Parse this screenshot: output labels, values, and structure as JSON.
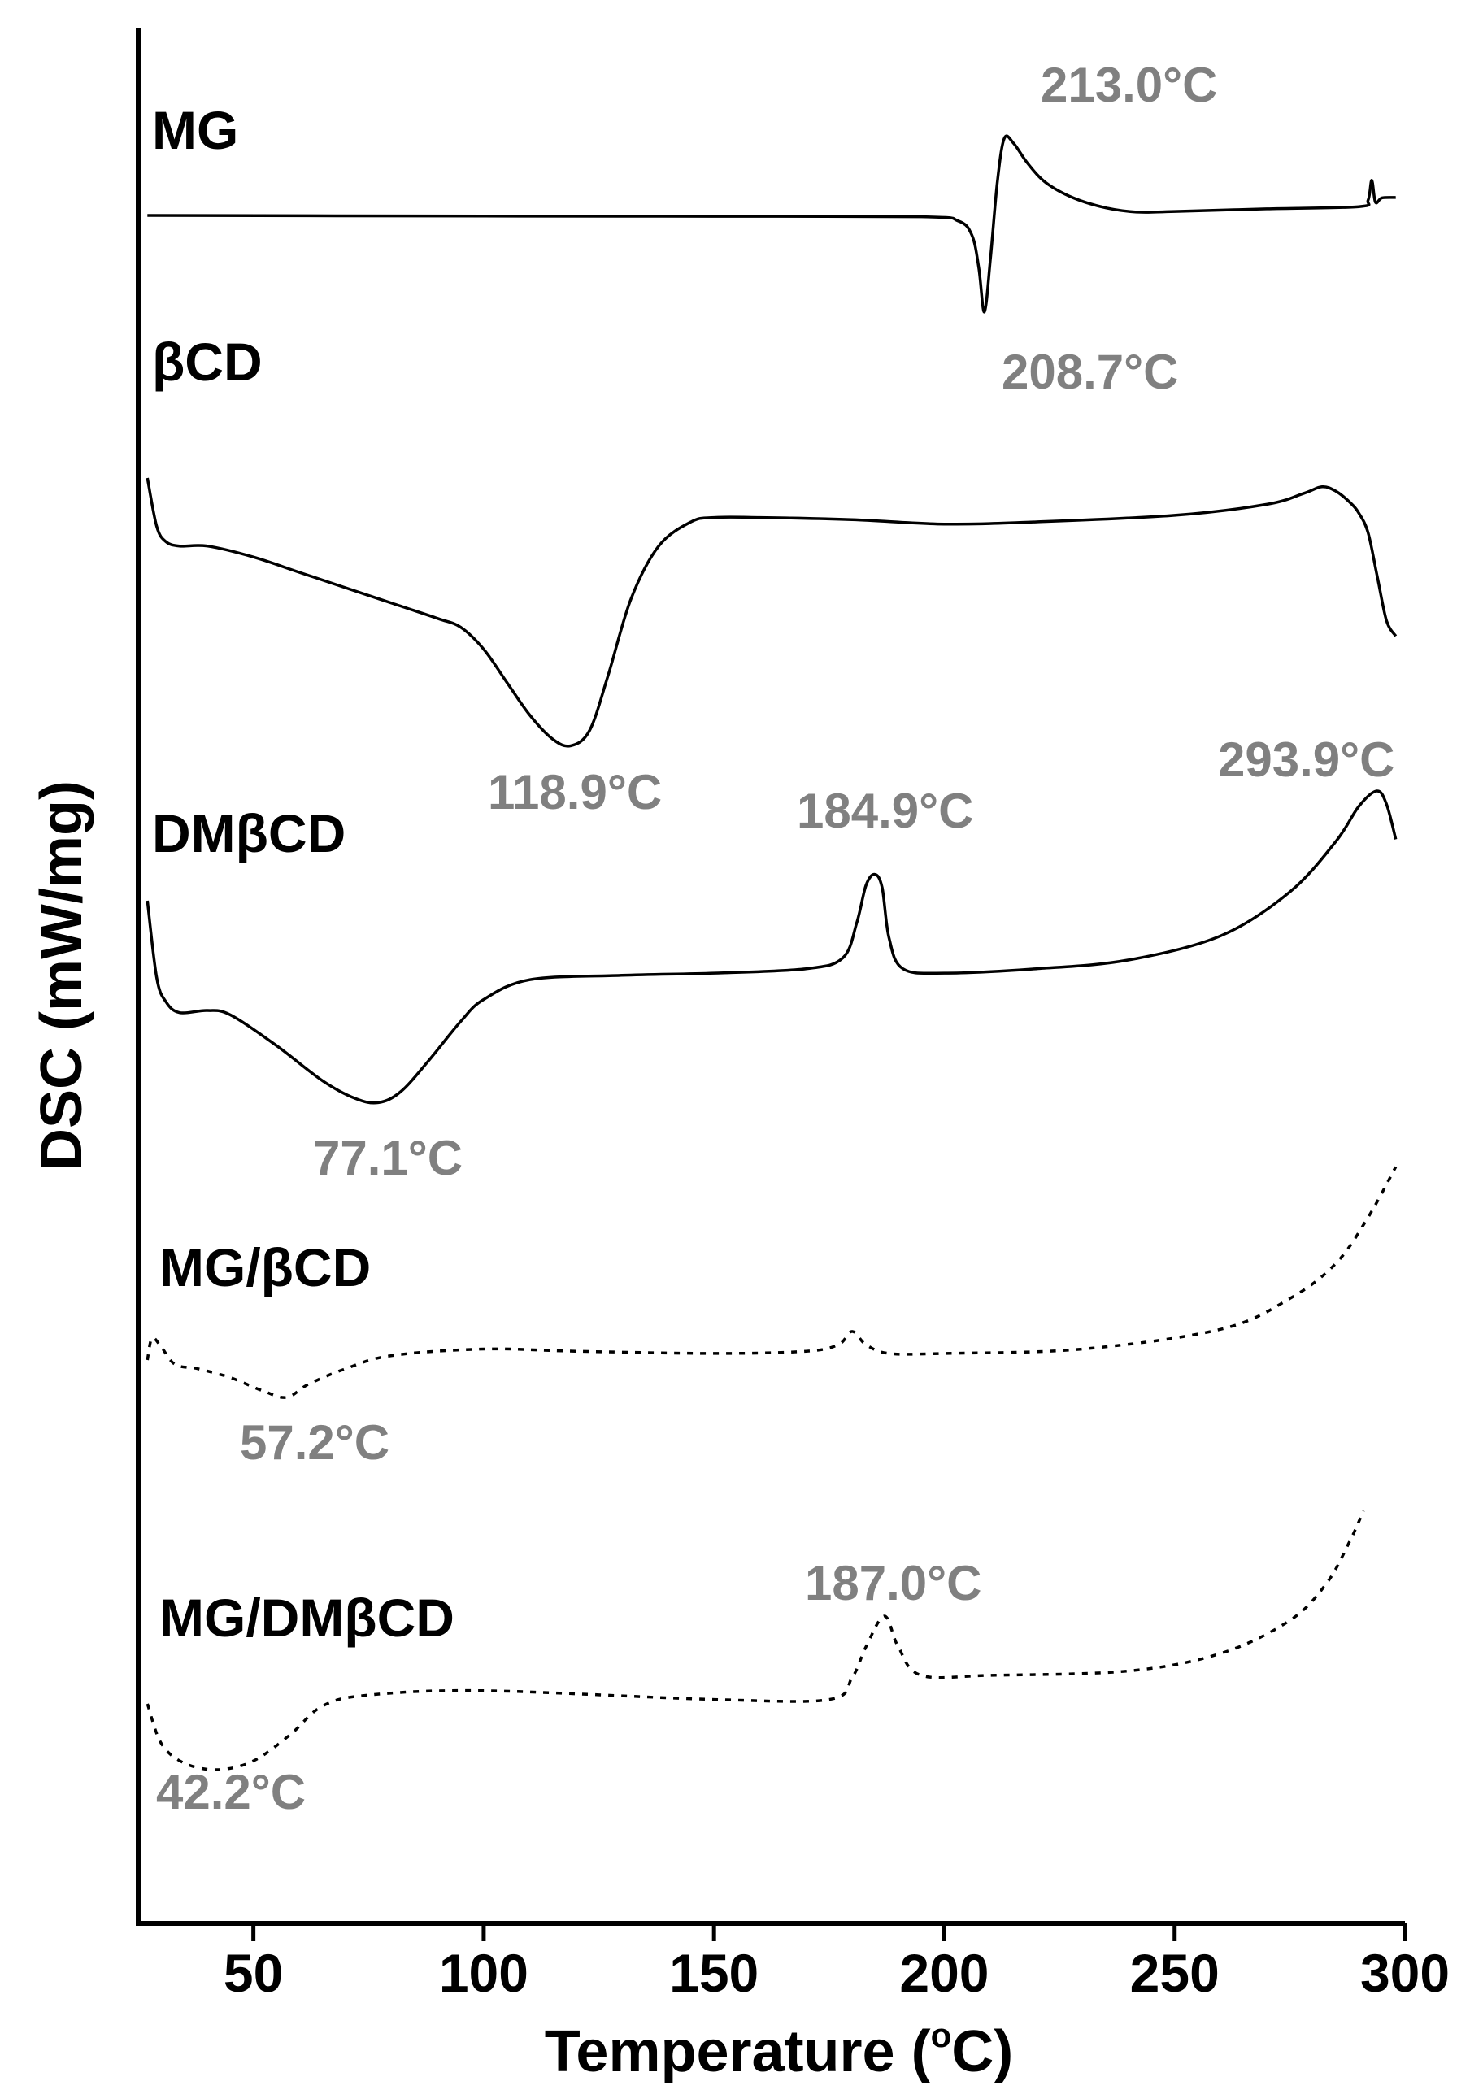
{
  "chart_data": {
    "type": "line",
    "title": "",
    "xlabel": "Temperature (°C)",
    "xlabel_main": "Temperature (",
    "xlabel_degree": "o",
    "xlabel_unit": "C)",
    "ylabel": "DSC (mW/mg)",
    "xlim": [
      25,
      300
    ],
    "xticks": [
      "50",
      "100",
      "150",
      "200",
      "250",
      "300"
    ],
    "xtick_values": [
      50,
      100,
      150,
      200,
      250,
      300
    ],
    "grid": false,
    "legend": "none",
    "series": [
      {
        "name": "MG",
        "style": "solid",
        "x": [
          27,
          100,
          150,
          195,
          203,
          206,
          207.5,
          208.7,
          210,
          211.5,
          213.0,
          215,
          218,
          222,
          228,
          235,
          242,
          250,
          270,
          290,
          292,
          292.8,
          293.6,
          295,
          298
        ],
        "y": [
          0.0,
          -0.03,
          -0.04,
          -0.06,
          -0.25,
          -0.9,
          -2.4,
          -4.4,
          -2.0,
          1.5,
          3.5,
          3.3,
          2.4,
          1.5,
          0.8,
          0.35,
          0.15,
          0.18,
          0.3,
          0.4,
          0.7,
          1.6,
          0.6,
          0.8,
          0.82
        ]
      },
      {
        "name": "βCD",
        "style": "solid",
        "x": [
          27,
          29,
          31,
          34,
          40,
          50,
          60,
          70,
          80,
          90,
          95,
          100,
          105,
          110,
          115,
          118.9,
          123,
          127,
          132,
          138,
          145,
          150,
          160,
          180,
          200,
          220,
          250,
          270,
          278,
          282,
          285,
          288,
          290,
          292,
          294,
          296,
          298
        ],
        "y": [
          6.0,
          3.8,
          3.1,
          2.9,
          2.9,
          2.4,
          1.7,
          1.0,
          0.3,
          -0.4,
          -0.8,
          -1.8,
          -3.3,
          -4.8,
          -5.9,
          -6.2,
          -5.5,
          -3.0,
          0.5,
          2.9,
          4.0,
          4.2,
          4.2,
          4.1,
          3.9,
          4.0,
          4.3,
          4.8,
          5.3,
          5.6,
          5.4,
          4.9,
          4.4,
          3.5,
          1.5,
          -0.5,
          -1.2
        ]
      },
      {
        "name": "DMβCD",
        "style": "solid",
        "x": [
          27,
          29,
          31,
          34,
          40,
          45,
          55,
          65,
          72,
          77.1,
          82,
          88,
          95,
          100,
          110,
          130,
          150,
          170,
          178,
          181,
          183,
          184.9,
          186.5,
          188,
          191,
          200,
          220,
          240,
          260,
          275,
          285,
          290,
          293.9,
          296,
          298
        ],
        "y": [
          6.0,
          2.5,
          1.4,
          0.9,
          1.0,
          0.8,
          -0.6,
          -2.2,
          -3.0,
          -3.2,
          -2.7,
          -1.3,
          0.5,
          1.5,
          2.4,
          2.6,
          2.7,
          2.9,
          3.4,
          5.0,
          6.7,
          7.2,
          6.6,
          4.3,
          2.9,
          2.7,
          2.9,
          3.3,
          4.4,
          6.4,
          8.7,
          10.3,
          11.0,
          10.4,
          8.8
        ]
      },
      {
        "name": "MG/βCD",
        "style": "dotted",
        "x": [
          27,
          28,
          30,
          33,
          38,
          45,
          52,
          57.2,
          62,
          70,
          80,
          100,
          120,
          150,
          170,
          177,
          180,
          183,
          188,
          200,
          230,
          260,
          275,
          285,
          292,
          298
        ],
        "y": [
          1.0,
          2.0,
          1.6,
          0.8,
          0.6,
          0.2,
          -0.4,
          -0.7,
          -0.1,
          0.6,
          1.2,
          1.5,
          1.4,
          1.3,
          1.4,
          1.7,
          2.3,
          1.7,
          1.3,
          1.3,
          1.5,
          2.4,
          3.8,
          5.4,
          7.5,
          9.8
        ]
      },
      {
        "name": "MG/DMβCD",
        "style": "dotted",
        "x": [
          27,
          30,
          35,
          42.2,
          50,
          58,
          65,
          75,
          100,
          150,
          175,
          180,
          183,
          187.0,
          190,
          195,
          210,
          240,
          260,
          275,
          283,
          288,
          291
        ],
        "y": [
          2.0,
          0.2,
          -0.7,
          -1.0,
          -0.6,
          0.6,
          1.9,
          2.4,
          2.6,
          2.2,
          2.2,
          3.2,
          4.6,
          6.0,
          4.6,
          3.3,
          3.3,
          3.5,
          4.3,
          5.8,
          7.5,
          9.4,
          10.8
        ]
      }
    ],
    "annotations": [
      {
        "text": "213.0°C",
        "series": "MG",
        "x": 213.0
      },
      {
        "text": "208.7°C",
        "series": "MG",
        "x": 208.7
      },
      {
        "text": "118.9°C",
        "series": "βCD",
        "x": 118.9
      },
      {
        "text": "184.9°C",
        "series": "DMβCD",
        "x": 184.9
      },
      {
        "text": "293.9°C",
        "series": "DMβCD",
        "x": 293.9
      },
      {
        "text": "77.1°C",
        "series": "DMβCD",
        "x": 77.1
      },
      {
        "text": "57.2°C",
        "series": "MG/βCD",
        "x": 57.2
      },
      {
        "text": "187.0°C",
        "series": "MG/DMβCD",
        "x": 187.0
      },
      {
        "text": "42.2°C",
        "series": "MG/DMβCD",
        "x": 42.2
      }
    ]
  }
}
